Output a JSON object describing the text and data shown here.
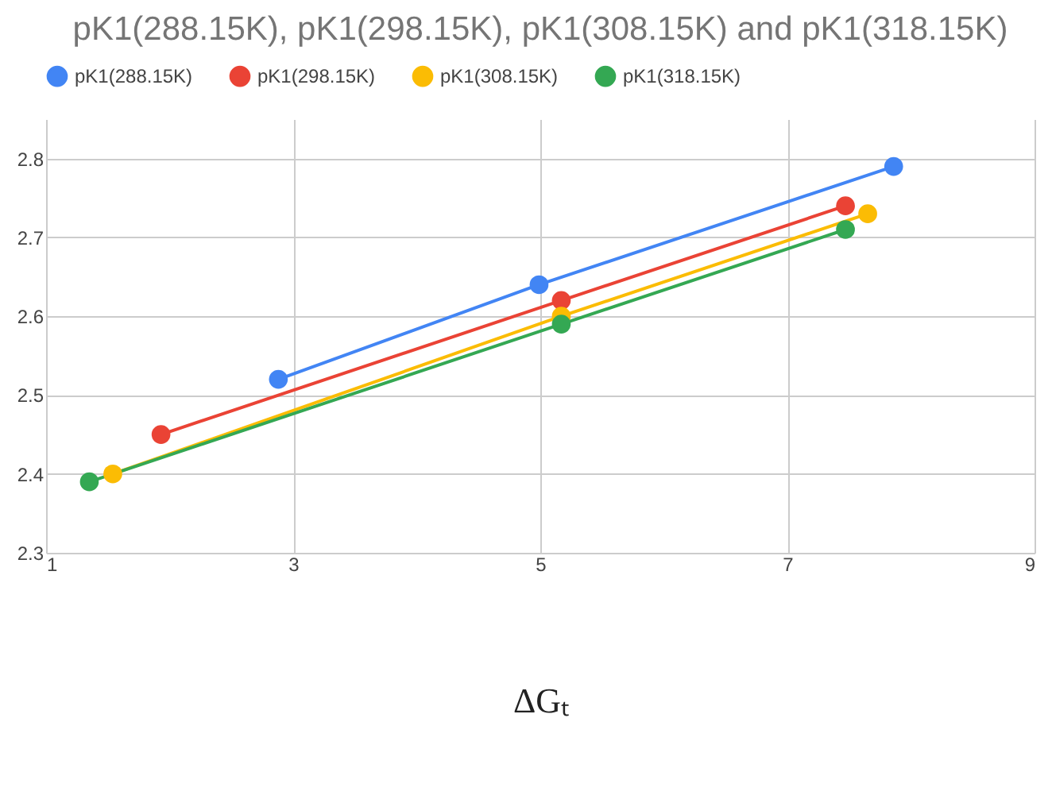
{
  "chart_data": {
    "type": "line",
    "title": "pK1(288.15K), pK1(298.15K), pK1(308.15K) and pK1(318.15K)",
    "xlabel": "ΔGₜ",
    "xlim": [
      1,
      9
    ],
    "xticks": [
      1,
      3,
      5,
      7,
      9
    ],
    "ylim": [
      2.3,
      2.85
    ],
    "yticks": [
      2.3,
      2.4,
      2.5,
      2.6,
      2.7,
      2.8
    ],
    "grid": true,
    "legend": "top",
    "marker": "circle",
    "line_style": "solid",
    "series": [
      {
        "name": "pK1(288.15K)",
        "color": "#4285f4",
        "x": [
          2.88,
          4.99,
          7.86
        ],
        "values": [
          2.52,
          2.64,
          2.79
        ]
      },
      {
        "name": "pK1(298.15K)",
        "color": "#ea4335",
        "x": [
          1.93,
          5.17,
          7.47
        ],
        "values": [
          2.45,
          2.62,
          2.74
        ]
      },
      {
        "name": "pK1(308.15K)",
        "color": "#fbbc04",
        "x": [
          1.54,
          5.17,
          7.65
        ],
        "values": [
          2.4,
          2.6,
          2.73
        ]
      },
      {
        "name": "pK1(318.15K)",
        "color": "#34a853",
        "x": [
          1.35,
          5.17,
          7.47
        ],
        "values": [
          2.39,
          2.59,
          2.71
        ]
      }
    ]
  }
}
